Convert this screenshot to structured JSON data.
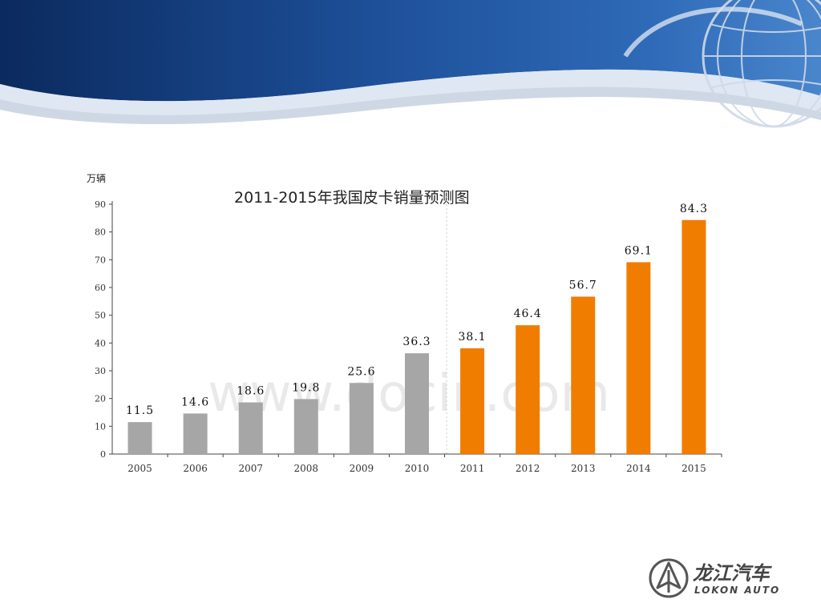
{
  "colors": {
    "banner_dark": "#0d2d63",
    "banner_mid": "#1f58a6",
    "historical_bar": "#a6a6a6",
    "forecast_bar": "#f07d00",
    "axis": "#444444"
  },
  "watermark": "www.docin.com",
  "logo": {
    "text_cn": "龙江汽车",
    "text_en": "LOKON AUTO"
  },
  "chart_data": {
    "type": "bar",
    "title": "2011-2015年我国皮卡销量预测图",
    "ylabel": "万辆",
    "xlabel": "",
    "ylim": [
      0,
      90
    ],
    "yticks": [
      0,
      10,
      20,
      30,
      40,
      50,
      60,
      70,
      80,
      90
    ],
    "grid": false,
    "categories": [
      "2005",
      "2006",
      "2007",
      "2008",
      "2009",
      "2010",
      "2011",
      "2012",
      "2013",
      "2014",
      "2015"
    ],
    "series": [
      {
        "values": [
          11.5,
          14.6,
          18.6,
          19.8,
          25.6,
          36.3,
          null,
          null,
          null,
          null,
          null
        ],
        "color": "#a6a6a6"
      },
      {
        "values": [
          null,
          null,
          null,
          null,
          null,
          null,
          38.1,
          46.4,
          56.7,
          69.1,
          84.3
        ],
        "color": "#f07d00"
      }
    ],
    "value_labels": [
      "11.5",
      "14.6",
      "18.6",
      "19.8",
      "25.6",
      "36.3",
      "38.1",
      "46.4",
      "56.7",
      "69.1",
      "84.3"
    ]
  }
}
